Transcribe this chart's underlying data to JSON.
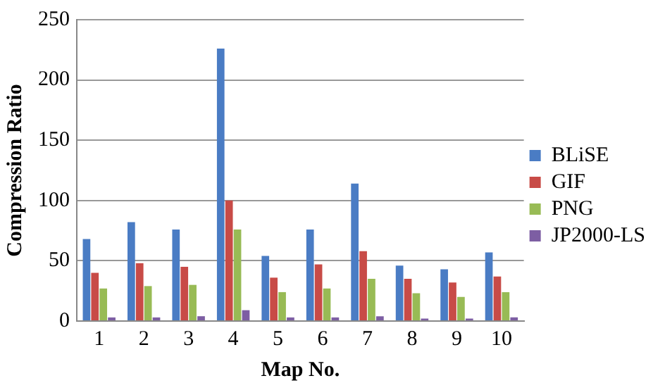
{
  "chart_data": {
    "type": "bar",
    "xlabel": "Map No.",
    "ylabel": "Compression Ratio",
    "categories": [
      "1",
      "2",
      "3",
      "4",
      "5",
      "6",
      "7",
      "8",
      "9",
      "10"
    ],
    "series": [
      {
        "name": "BLiSE",
        "color": "#4a7cc4",
        "values": [
          68,
          82,
          76,
          226,
          54,
          76,
          114,
          46,
          43,
          57
        ]
      },
      {
        "name": "GIF",
        "color": "#c84b47",
        "values": [
          40,
          48,
          45,
          100,
          36,
          47,
          58,
          35,
          32,
          37
        ]
      },
      {
        "name": "PNG",
        "color": "#98bb55",
        "values": [
          27,
          29,
          30,
          76,
          24,
          27,
          35,
          23,
          20,
          24
        ]
      },
      {
        "name": "JP2000-LS",
        "color": "#7d5ea3",
        "values": [
          3,
          3,
          4,
          9,
          3,
          3,
          4,
          2,
          2,
          3
        ]
      }
    ],
    "ylim": [
      0,
      250
    ],
    "yticks": [
      0,
      50,
      100,
      150,
      200,
      250
    ],
    "grid": "y",
    "legend": "right"
  }
}
